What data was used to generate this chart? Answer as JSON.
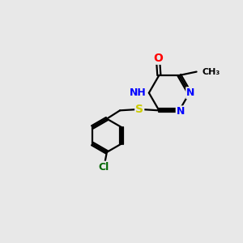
{
  "background_color": "#e8e8e8",
  "bond_color": "#000000",
  "atom_colors": {
    "O": "#ff0000",
    "N": "#0000ff",
    "S": "#cccc00",
    "Cl": "#006600",
    "C": "#000000",
    "H": "#555555"
  }
}
